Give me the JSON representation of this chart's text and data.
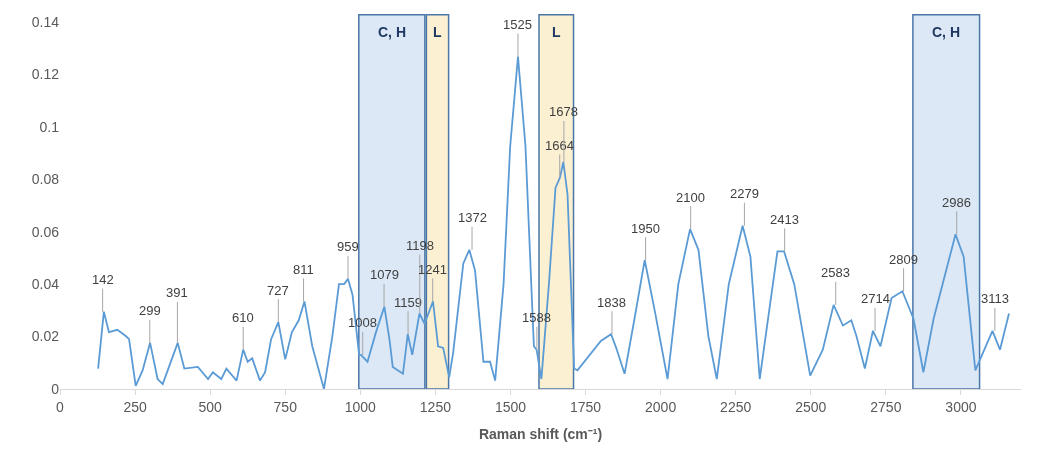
{
  "chart_data": {
    "type": "line",
    "xlabel": "Raman shift (cm⁻¹)",
    "xlim": [
      0,
      3200
    ],
    "xticks": [
      0,
      250,
      500,
      750,
      1000,
      1250,
      1500,
      1750,
      2000,
      2250,
      2500,
      2750,
      3000
    ],
    "ylim": [
      0,
      0.14
    ],
    "yticks": [
      0,
      0.02,
      0.04,
      0.06,
      0.08,
      0.1,
      0.12,
      0.14
    ],
    "grid": false,
    "marker": "none",
    "line_style": "solid",
    "series": [
      {
        "color": "#5b9bd5",
        "x": [
          127,
          146,
          163,
          191,
          219,
          230,
          252,
          275,
          300,
          325,
          342,
          392,
          414,
          459,
          493,
          509,
          537,
          554,
          588,
          610,
          625,
          640,
          666,
          683,
          703,
          727,
          750,
          772,
          795,
          814,
          840,
          879,
          907,
          929,
          946,
          959,
          974,
          996,
          1002,
          1024,
          1052,
          1080,
          1097,
          1108,
          1142,
          1158,
          1173,
          1197,
          1214,
          1242,
          1259,
          1276,
          1296,
          1309,
          1343,
          1363,
          1382,
          1410,
          1432,
          1449,
          1477,
          1499,
          1525,
          1550,
          1578,
          1587,
          1603,
          1628,
          1650,
          1665,
          1676,
          1690,
          1712,
          1723,
          1801,
          1835,
          1852,
          1880,
          1913,
          1947,
          1981,
          2023,
          2059,
          2098,
          2126,
          2159,
          2187,
          2227,
          2273,
          2299,
          2330,
          2361,
          2389,
          2411,
          2445,
          2498,
          2540,
          2576,
          2607,
          2635,
          2652,
          2680,
          2707,
          2732,
          2769,
          2805,
          2842,
          2875,
          2909,
          2954,
          2982,
          3009,
          3048,
          3105,
          3130,
          3160
        ],
        "values": [
          0.0078,
          0.0295,
          0.0217,
          0.0226,
          0.0202,
          0.019,
          0.0012,
          0.0071,
          0.0176,
          0.0038,
          0.0019,
          0.0176,
          0.0078,
          0.0084,
          0.0038,
          0.0064,
          0.0038,
          0.0078,
          0.0032,
          0.015,
          0.0104,
          0.0117,
          0.0032,
          0.0064,
          0.019,
          0.0255,
          0.0113,
          0.0216,
          0.0262,
          0.0334,
          0.0163,
          0.0,
          0.0202,
          0.04,
          0.04,
          0.042,
          0.036,
          0.013,
          0.013,
          0.0104,
          0.0216,
          0.0314,
          0.019,
          0.0084,
          0.0058,
          0.0209,
          0.013,
          0.0288,
          0.0249,
          0.0334,
          0.0163,
          0.0157,
          0.0045,
          0.0137,
          0.0479,
          0.0531,
          0.0452,
          0.0104,
          0.0104,
          0.0032,
          0.04,
          0.0925,
          0.1268,
          0.0925,
          0.0163,
          0.015,
          0.0038,
          0.04,
          0.0768,
          0.0807,
          0.0866,
          0.0742,
          0.0078,
          0.0071,
          0.0183,
          0.0209,
          0.0157,
          0.0058,
          0.0268,
          0.0492,
          0.0295,
          0.0038,
          0.04,
          0.061,
          0.0531,
          0.0202,
          0.0038,
          0.04,
          0.0623,
          0.0505,
          0.0038,
          0.0295,
          0.0525,
          0.0525,
          0.04,
          0.0051,
          0.015,
          0.0321,
          0.0242,
          0.0262,
          0.0202,
          0.0078,
          0.0222,
          0.0163,
          0.0347,
          0.0373,
          0.0268,
          0.0064,
          0.0268,
          0.0466,
          0.059,
          0.0505,
          0.0071,
          0.0222,
          0.015,
          0.0288
        ]
      }
    ],
    "bands": [
      {
        "axis": "x",
        "from": 995,
        "to": 1215,
        "label": "C, H",
        "color": "#dce8f6"
      },
      {
        "axis": "x",
        "from": 1220,
        "to": 1294,
        "label": "L",
        "color": "#fcf0d2"
      },
      {
        "axis": "x",
        "from": 1595,
        "to": 1710,
        "label": "L",
        "color": "#fcf0d2"
      },
      {
        "axis": "x",
        "from": 2840,
        "to": 3062,
        "label": "C, H",
        "color": "#dce8f6"
      }
    ],
    "annotations": [
      {
        "text": "142",
        "x": 142,
        "y": 0.0295
      },
      {
        "text": "299",
        "x": 299,
        "y": 0.0176
      },
      {
        "text": "391",
        "x": 391,
        "y": 0.0176
      },
      {
        "text": "610",
        "x": 610,
        "y": 0.015
      },
      {
        "text": "727",
        "x": 727,
        "y": 0.0255
      },
      {
        "text": "811",
        "x": 811,
        "y": 0.0334
      },
      {
        "text": "959",
        "x": 959,
        "y": 0.042
      },
      {
        "text": "1008",
        "x": 1008,
        "y": 0.013
      },
      {
        "text": "1079",
        "x": 1079,
        "y": 0.0314
      },
      {
        "text": "1159",
        "x": 1159,
        "y": 0.0209
      },
      {
        "text": "1198",
        "x": 1198,
        "y": 0.0288
      },
      {
        "text": "1241",
        "x": 1241,
        "y": 0.0334
      },
      {
        "text": "1372",
        "x": 1372,
        "y": 0.0531
      },
      {
        "text": "1525",
        "x": 1525,
        "y": 0.1268
      },
      {
        "text": "1588",
        "x": 1588,
        "y": 0.015
      },
      {
        "text": "1664",
        "x": 1664,
        "y": 0.0807
      },
      {
        "text": "1678",
        "x": 1678,
        "y": 0.0866
      },
      {
        "text": "1838",
        "x": 1838,
        "y": 0.0209
      },
      {
        "text": "1950",
        "x": 1950,
        "y": 0.0492
      },
      {
        "text": "2100",
        "x": 2100,
        "y": 0.061
      },
      {
        "text": "2279",
        "x": 2279,
        "y": 0.0623
      },
      {
        "text": "2413",
        "x": 2413,
        "y": 0.0525
      },
      {
        "text": "2583",
        "x": 2583,
        "y": 0.0321
      },
      {
        "text": "2714",
        "x": 2714,
        "y": 0.0222
      },
      {
        "text": "2809",
        "x": 2809,
        "y": 0.0373
      },
      {
        "text": "2986",
        "x": 2986,
        "y": 0.059
      },
      {
        "text": "3113",
        "x": 3113,
        "y": 0.0222
      }
    ]
  }
}
